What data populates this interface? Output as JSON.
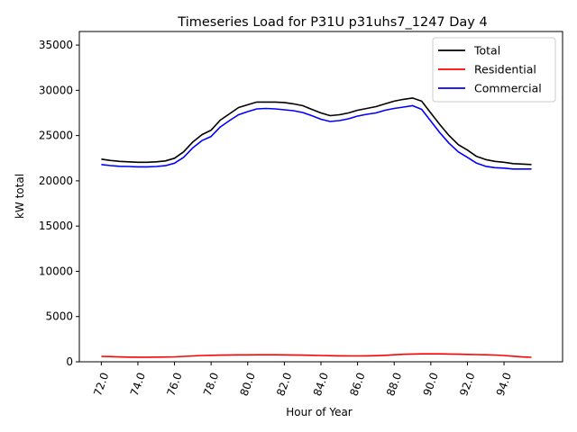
{
  "chart_data": {
    "type": "line",
    "title": "Timeseries Load for P31U p31uhs7_1247  Day 4",
    "xlabel": "Hour of Year",
    "ylabel": "kW total",
    "xlim": [
      70.8,
      97.2
    ],
    "ylim": [
      0,
      36500
    ],
    "xticks": [
      "72.0",
      "74.0",
      "76.0",
      "78.0",
      "80.0",
      "82.0",
      "84.0",
      "86.0",
      "88.0",
      "90.0",
      "92.0",
      "94.0"
    ],
    "xtick_values": [
      72,
      74,
      76,
      78,
      80,
      82,
      84,
      86,
      88,
      90,
      92,
      94
    ],
    "yticks": [
      "0",
      "5000",
      "10000",
      "15000",
      "20000",
      "25000",
      "30000",
      "35000"
    ],
    "ytick_values": [
      0,
      5000,
      10000,
      15000,
      20000,
      25000,
      30000,
      35000
    ],
    "grid": false,
    "legend_position": "top-right",
    "x": [
      72.0,
      72.5,
      73.0,
      73.5,
      74.0,
      74.5,
      75.0,
      75.5,
      76.0,
      76.5,
      77.0,
      77.5,
      78.0,
      78.5,
      79.0,
      79.5,
      80.0,
      80.5,
      81.0,
      81.5,
      82.0,
      82.5,
      83.0,
      83.5,
      84.0,
      84.5,
      85.0,
      85.5,
      86.0,
      86.5,
      87.0,
      87.5,
      88.0,
      88.5,
      89.0,
      89.5,
      90.0,
      90.5,
      91.0,
      91.5,
      92.0,
      92.5,
      93.0,
      93.5,
      94.0,
      94.5,
      95.0,
      95.5
    ],
    "series": [
      {
        "name": "Total",
        "color": "#000000",
        "values": [
          22400,
          22250,
          22150,
          22100,
          22050,
          22050,
          22100,
          22200,
          22500,
          23200,
          24300,
          25100,
          25600,
          26700,
          27400,
          28100,
          28400,
          28700,
          28700,
          28700,
          28650,
          28500,
          28300,
          27900,
          27500,
          27200,
          27300,
          27500,
          27800,
          28000,
          28200,
          28500,
          28800,
          29000,
          29150,
          28800,
          27500,
          26200,
          25000,
          24000,
          23400,
          22700,
          22350,
          22150,
          22050,
          21900,
          21850,
          21800
        ]
      },
      {
        "name": "Residential",
        "color": "#ff0000",
        "values": [
          600,
          580,
          540,
          520,
          510,
          510,
          520,
          530,
          550,
          600,
          650,
          700,
          720,
          740,
          760,
          770,
          770,
          780,
          780,
          780,
          770,
          760,
          740,
          720,
          700,
          680,
          660,
          650,
          650,
          660,
          680,
          720,
          780,
          830,
          860,
          880,
          880,
          880,
          860,
          840,
          820,
          800,
          780,
          750,
          700,
          620,
          540,
          500
        ]
      },
      {
        "name": "Commercial",
        "color": "#0000ff",
        "values": [
          21800,
          21680,
          21600,
          21580,
          21540,
          21540,
          21580,
          21670,
          21950,
          22600,
          23650,
          24450,
          24900,
          25950,
          26650,
          27300,
          27650,
          27950,
          28000,
          27950,
          27850,
          27750,
          27550,
          27200,
          26800,
          26550,
          26650,
          26850,
          27150,
          27350,
          27500,
          27800,
          28000,
          28150,
          28300,
          27900,
          26600,
          25300,
          24150,
          23200,
          22600,
          21950,
          21600,
          21450,
          21400,
          21300,
          21300,
          21300
        ]
      }
    ]
  }
}
